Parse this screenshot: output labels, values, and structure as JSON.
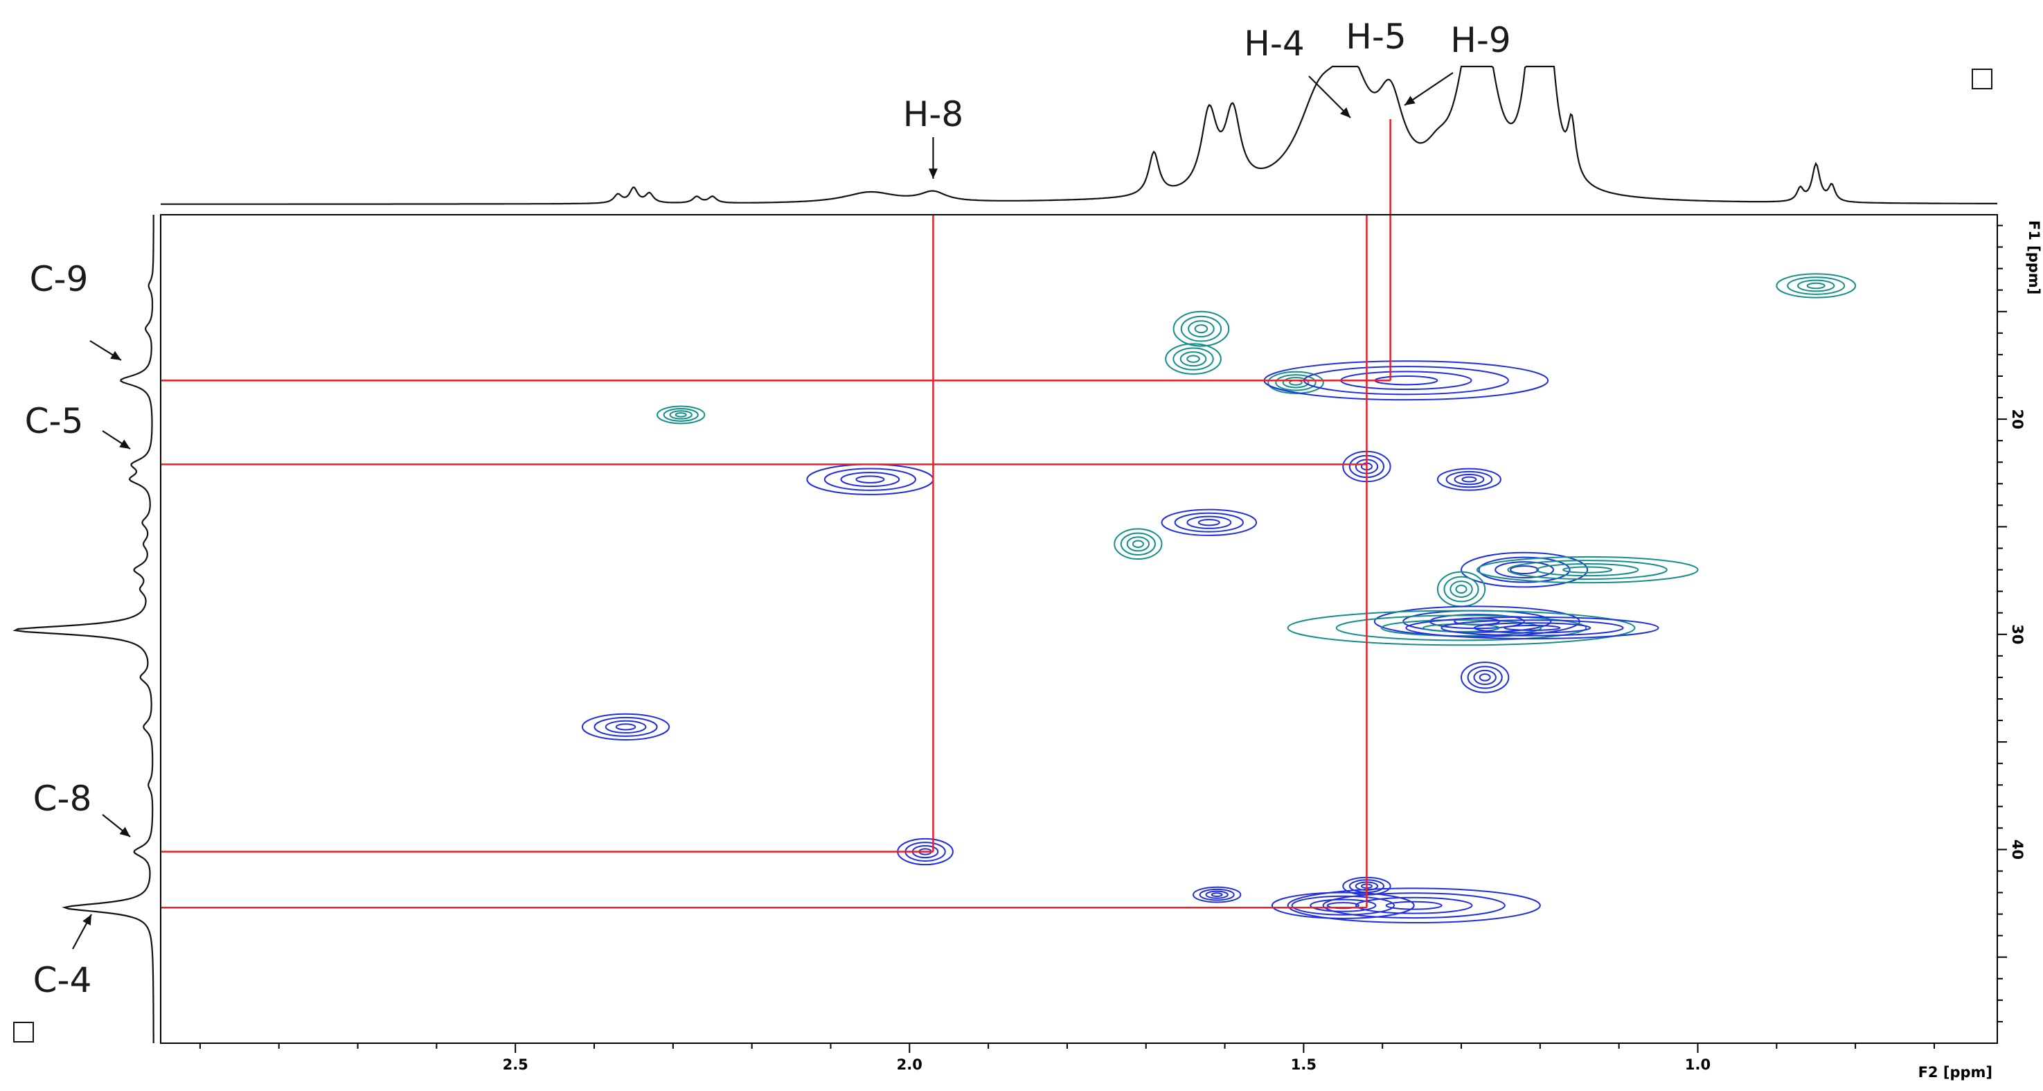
{
  "chart_data": {
    "type": "heatmap",
    "subtype": "2D NMR correlation spectrum (HSQC) with 1D projections",
    "x_axis": {
      "label": "F2 [ppm]",
      "range": [
        2.95,
        0.62
      ],
      "reversed": true,
      "ticks": [
        2.5,
        2.0,
        1.5,
        1.0
      ],
      "tick_labels": [
        "2.5",
        "2.0",
        "1.5",
        "1.0"
      ]
    },
    "y_axis": {
      "label": "F1 [ppm]",
      "range": [
        10.5,
        49.0
      ],
      "reversed": true,
      "side": "right",
      "ticks": [
        20,
        30,
        40
      ],
      "tick_labels": [
        "20",
        "30",
        "40"
      ]
    },
    "colors": {
      "positive": "#1f2fe0",
      "negative": "#138f8a",
      "guide": "#e8202a",
      "axes": "#000000"
    },
    "cross_peaks": [
      {
        "x": 0.85,
        "y": 13.8,
        "w": 0.05,
        "h": 0.55,
        "phase": "negative"
      },
      {
        "x": 1.63,
        "y": 15.8,
        "w": 0.035,
        "h": 0.8,
        "phase": "negative"
      },
      {
        "x": 1.64,
        "y": 17.2,
        "w": 0.035,
        "h": 0.7,
        "phase": "negative"
      },
      {
        "x": 1.51,
        "y": 18.3,
        "w": 0.035,
        "h": 0.5,
        "phase": "negative"
      },
      {
        "x": 1.37,
        "y": 18.2,
        "w": 0.18,
        "h": 0.9,
        "phase": "positive"
      },
      {
        "x": 2.29,
        "y": 19.8,
        "w": 0.03,
        "h": 0.4,
        "phase": "negative"
      },
      {
        "x": 1.42,
        "y": 22.2,
        "w": 0.03,
        "h": 0.7,
        "phase": "positive"
      },
      {
        "x": 2.05,
        "y": 22.8,
        "w": 0.08,
        "h": 0.7,
        "phase": "positive"
      },
      {
        "x": 1.29,
        "y": 22.8,
        "w": 0.04,
        "h": 0.5,
        "phase": "positive"
      },
      {
        "x": 1.62,
        "y": 24.8,
        "w": 0.06,
        "h": 0.6,
        "phase": "positive"
      },
      {
        "x": 1.71,
        "y": 25.8,
        "w": 0.03,
        "h": 0.7,
        "phase": "negative"
      },
      {
        "x": 1.22,
        "y": 27.0,
        "w": 0.08,
        "h": 0.8,
        "phase": "positive"
      },
      {
        "x": 1.14,
        "y": 27.0,
        "w": 0.14,
        "h": 0.6,
        "phase": "negative"
      },
      {
        "x": 1.3,
        "y": 27.9,
        "w": 0.03,
        "h": 0.8,
        "phase": "negative"
      },
      {
        "x": 1.28,
        "y": 29.4,
        "w": 0.13,
        "h": 0.7,
        "phase": "positive"
      },
      {
        "x": 1.3,
        "y": 29.7,
        "w": 0.22,
        "h": 0.8,
        "phase": "negative"
      },
      {
        "x": 1.21,
        "y": 29.7,
        "w": 0.16,
        "h": 0.5,
        "phase": "positive"
      },
      {
        "x": 1.27,
        "y": 32.0,
        "w": 0.03,
        "h": 0.7,
        "phase": "positive"
      },
      {
        "x": 2.36,
        "y": 34.3,
        "w": 0.055,
        "h": 0.6,
        "phase": "positive"
      },
      {
        "x": 1.98,
        "y": 40.1,
        "w": 0.035,
        "h": 0.6,
        "phase": "positive"
      },
      {
        "x": 1.42,
        "y": 41.7,
        "w": 0.03,
        "h": 0.4,
        "phase": "positive"
      },
      {
        "x": 1.61,
        "y": 42.1,
        "w": 0.03,
        "h": 0.35,
        "phase": "positive"
      },
      {
        "x": 1.36,
        "y": 42.6,
        "w": 0.16,
        "h": 0.8,
        "phase": "positive"
      },
      {
        "x": 1.45,
        "y": 42.6,
        "w": 0.09,
        "h": 0.6,
        "phase": "positive"
      }
    ],
    "assignments": [
      {
        "label": "H-8",
        "x": 1.97,
        "axis": "F2"
      },
      {
        "label": "H-4",
        "x": 1.42,
        "axis": "F2"
      },
      {
        "label": "H-5",
        "x": 1.42,
        "axis": "F2"
      },
      {
        "label": "H-9",
        "x": 1.39,
        "axis": "F2"
      },
      {
        "label": "C-9",
        "y": 18.2,
        "axis": "F1"
      },
      {
        "label": "C-5",
        "y": 22.1,
        "axis": "F1"
      },
      {
        "label": "C-8",
        "y": 40.1,
        "axis": "F1"
      },
      {
        "label": "C-4",
        "y": 42.7,
        "axis": "F1"
      }
    ],
    "guide_lines": [
      {
        "orientation": "horizontal",
        "y": 18.2,
        "x_from": 2.95,
        "x_to": 1.39
      },
      {
        "orientation": "horizontal",
        "y": 22.1,
        "x_from": 2.95,
        "x_to": 1.42
      },
      {
        "orientation": "horizontal",
        "y": 40.1,
        "x_from": 2.95,
        "x_to": 1.97
      },
      {
        "orientation": "horizontal",
        "y": 42.7,
        "x_from": 2.95,
        "x_to": 1.42
      },
      {
        "orientation": "vertical",
        "x": 1.97,
        "y_from": 10.5,
        "y_to": 40.1
      },
      {
        "orientation": "vertical",
        "x": 1.42,
        "y_from": 10.5,
        "y_to": 42.7
      },
      {
        "orientation": "vertical",
        "x": 1.39,
        "y_to": 18.2
      }
    ],
    "f2_projection_peaks": [
      {
        "x": 2.37,
        "height": 0.08,
        "width": 0.006
      },
      {
        "x": 2.35,
        "height": 0.14,
        "width": 0.006
      },
      {
        "x": 2.33,
        "height": 0.09,
        "width": 0.006
      },
      {
        "x": 2.27,
        "height": 0.06,
        "width": 0.006
      },
      {
        "x": 2.25,
        "height": 0.06,
        "width": 0.006
      },
      {
        "x": 2.05,
        "height": 0.1,
        "width": 0.04
      },
      {
        "x": 1.97,
        "height": 0.09,
        "width": 0.02
      },
      {
        "x": 1.69,
        "height": 0.4,
        "width": 0.008
      },
      {
        "x": 1.62,
        "height": 0.72,
        "width": 0.012
      },
      {
        "x": 1.59,
        "height": 0.7,
        "width": 0.012
      },
      {
        "x": 1.48,
        "height": 0.75,
        "width": 0.035
      },
      {
        "x": 1.44,
        "height": 0.9,
        "width": 0.03
      },
      {
        "x": 1.39,
        "height": 0.7,
        "width": 0.02
      },
      {
        "x": 1.33,
        "height": 0.2,
        "width": 0.02
      },
      {
        "x": 1.29,
        "height": 0.95,
        "width": 0.02
      },
      {
        "x": 1.27,
        "height": 1.0,
        "width": 0.02
      },
      {
        "x": 1.21,
        "height": 1.3,
        "width": 0.012
      },
      {
        "x": 1.19,
        "height": 1.3,
        "width": 0.012
      },
      {
        "x": 1.16,
        "height": 0.5,
        "width": 0.006
      },
      {
        "x": 0.87,
        "height": 0.12,
        "width": 0.005
      },
      {
        "x": 0.85,
        "height": 0.35,
        "width": 0.006
      },
      {
        "x": 0.83,
        "height": 0.15,
        "width": 0.005
      }
    ],
    "f1_projection_peaks": [
      {
        "y": 13.8,
        "height": 0.05,
        "width": 0.3
      },
      {
        "y": 15.8,
        "height": 0.08,
        "width": 0.3
      },
      {
        "y": 18.2,
        "height": 0.35,
        "width": 0.3
      },
      {
        "y": 22.1,
        "height": 0.2,
        "width": 0.3
      },
      {
        "y": 22.8,
        "height": 0.22,
        "width": 0.3
      },
      {
        "y": 24.8,
        "height": 0.1,
        "width": 0.3
      },
      {
        "y": 25.8,
        "height": 0.08,
        "width": 0.3
      },
      {
        "y": 27.0,
        "height": 0.18,
        "width": 0.3
      },
      {
        "y": 27.9,
        "height": 0.1,
        "width": 0.3
      },
      {
        "y": 29.8,
        "height": 1.5,
        "width": 0.25
      },
      {
        "y": 32.0,
        "height": 0.12,
        "width": 0.3
      },
      {
        "y": 34.3,
        "height": 0.1,
        "width": 0.3
      },
      {
        "y": 37.0,
        "height": 0.05,
        "width": 0.3
      },
      {
        "y": 40.1,
        "height": 0.2,
        "width": 0.3
      },
      {
        "y": 42.7,
        "height": 0.95,
        "width": 0.25
      }
    ]
  }
}
